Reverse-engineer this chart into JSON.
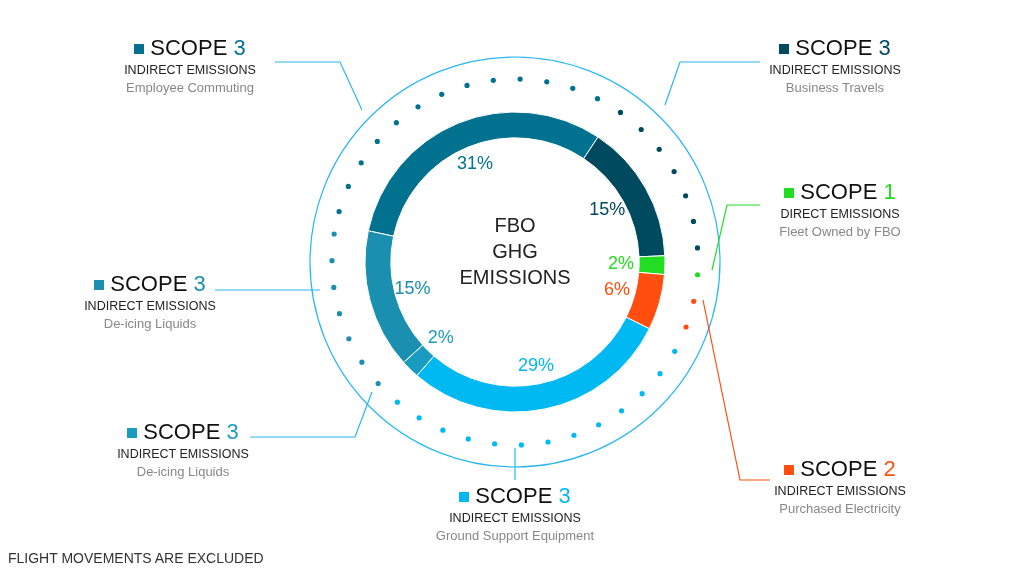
{
  "chart_data": {
    "type": "donut",
    "title": "FBO GHG EMISSIONS",
    "categories": [
      "SCOPE 3\nINDIRECT EMISSIONS\nEmployee Commuting",
      "SCOPE 3\nINDIRECT EMISSIONS\nBusiness Travels",
      "SCOPE 1\nDIRECT EMISSIONS\nFleet Owned by FBO",
      "SCOPE 2\nINDIRECT EMISSIONS\nPurchased Electricity",
      "SCOPE 3\nINDIRECT EMISSIONS\nGround Support Equipment",
      "SCOPE 3\nINDIRECT EMISSIONS\nDe-icing Liquids",
      "SCOPE 3\nINDIRECT EMISSIONS\nDe-icing Liquids"
    ],
    "values": [
      31,
      15,
      2,
      6,
      29,
      2,
      15
    ],
    "value_labels": [
      "31%",
      "15%",
      "2%",
      "6%",
      "29%",
      "2%",
      "15%"
    ],
    "colors": [
      "#00728f",
      "#004a60",
      "#22dd22",
      "#ff4e0e",
      "#00b9f2",
      "#1a9cc0",
      "#1b8fb0"
    ],
    "legend": "bottom left",
    "annotations": [
      "FLIGHT MOVEMENTS ARE EXCLUDED"
    ]
  }
}
